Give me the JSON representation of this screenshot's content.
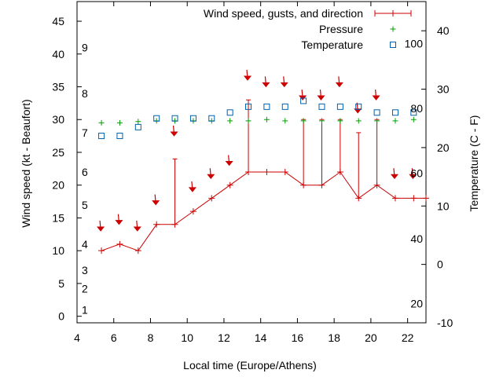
{
  "chart_data": {
    "type": "line",
    "xlabel": "Local time (Europe/Athens)",
    "ylabel": "Wind speed (kt - Beaufort)",
    "y2label": "Temperature (C - F)",
    "xlim": [
      4,
      23
    ],
    "ylim": [
      -1,
      48
    ],
    "y2lim": [
      -10,
      45
    ],
    "x_ticks": [
      4,
      6,
      8,
      10,
      12,
      14,
      16,
      18,
      20,
      22
    ],
    "y_ticks": [
      0,
      5,
      10,
      15,
      20,
      25,
      30,
      35,
      40,
      45
    ],
    "y2_ticks": [
      -10,
      0,
      10,
      20,
      30,
      40
    ],
    "beaufort_labels": [
      {
        "label": "1",
        "kt": 1
      },
      {
        "label": "2",
        "kt": 4.2
      },
      {
        "label": "3",
        "kt": 7
      },
      {
        "label": "4",
        "kt": 11
      },
      {
        "label": "5",
        "kt": 17
      },
      {
        "label": "6",
        "kt": 22
      },
      {
        "label": "7",
        "kt": 28
      },
      {
        "label": "8",
        "kt": 34
      },
      {
        "label": "9",
        "kt": 41
      }
    ],
    "fahrenheit_labels": [
      {
        "label": "20",
        "c": -6.7
      },
      {
        "label": "40",
        "c": 4.4
      },
      {
        "label": "60",
        "c": 15.6
      },
      {
        "label": "80",
        "c": 26.7
      },
      {
        "label": "100",
        "c": 37.8
      }
    ],
    "legend_position": "top-right",
    "series": [
      {
        "name": "Wind speed, gusts, and direction",
        "color": "#cc0000",
        "axis": "y",
        "x": [
          5.33,
          6.33,
          7.33,
          8.33,
          9.33,
          10.33,
          11.33,
          12.33,
          13.33,
          14.33,
          15.33,
          16.33,
          17.33,
          18.33,
          19.33,
          20.33,
          21.33,
          22.33,
          23
        ],
        "y": [
          10,
          11,
          10,
          14,
          14,
          16,
          18,
          20,
          22,
          22,
          22,
          20,
          20,
          22,
          18,
          20,
          18,
          18,
          18
        ],
        "gusts": [
          null,
          null,
          null,
          null,
          24,
          null,
          null,
          null,
          33,
          null,
          null,
          30,
          30,
          30,
          28,
          30,
          null,
          null,
          null
        ]
      },
      {
        "name": "Pressure",
        "color": "#00a000",
        "axis": "y",
        "x": [
          5.33,
          6.33,
          7.33,
          8.33,
          9.33,
          10.33,
          11.33,
          12.33,
          13.33,
          14.33,
          15.33,
          16.33,
          17.33,
          18.33,
          19.33,
          20.33,
          21.33,
          22.33
        ],
        "y": [
          29.5,
          29.5,
          29.7,
          29.8,
          29.8,
          29.8,
          29.8,
          29.8,
          29.8,
          30,
          29.8,
          29.8,
          29.8,
          29.8,
          29.8,
          29.8,
          29.8,
          30
        ]
      },
      {
        "name": "Temperature",
        "color": "#0060ad",
        "axis": "y2",
        "x": [
          5.33,
          6.33,
          7.33,
          8.33,
          9.33,
          10.33,
          11.33,
          12.33,
          13.33,
          14.33,
          15.33,
          16.33,
          17.33,
          18.33,
          19.33,
          20.33,
          21.33,
          22.33
        ],
        "y": [
          22,
          22,
          23.5,
          25,
          25,
          25,
          25,
          26,
          27,
          27,
          27,
          28,
          27,
          27,
          27,
          26,
          26,
          26
        ]
      }
    ],
    "wind_arrow_markers": [
      {
        "x": 5.33,
        "kt": 13.5
      },
      {
        "x": 6.33,
        "kt": 14.5
      },
      {
        "x": 7.33,
        "kt": 13.5
      },
      {
        "x": 8.33,
        "kt": 17.5
      },
      {
        "x": 9.33,
        "kt": 28
      },
      {
        "x": 10.33,
        "kt": 19.5
      },
      {
        "x": 11.33,
        "kt": 21.5
      },
      {
        "x": 12.33,
        "kt": 23.5
      },
      {
        "x": 13.33,
        "kt": 36.5
      },
      {
        "x": 14.33,
        "kt": 35.5
      },
      {
        "x": 15.33,
        "kt": 35.5
      },
      {
        "x": 16.33,
        "kt": 33.5
      },
      {
        "x": 17.33,
        "kt": 33.5
      },
      {
        "x": 18.33,
        "kt": 35.5
      },
      {
        "x": 19.33,
        "kt": 31.5
      },
      {
        "x": 20.33,
        "kt": 33.5
      },
      {
        "x": 21.33,
        "kt": 21.5
      },
      {
        "x": 22.33,
        "kt": 21.5
      }
    ]
  }
}
